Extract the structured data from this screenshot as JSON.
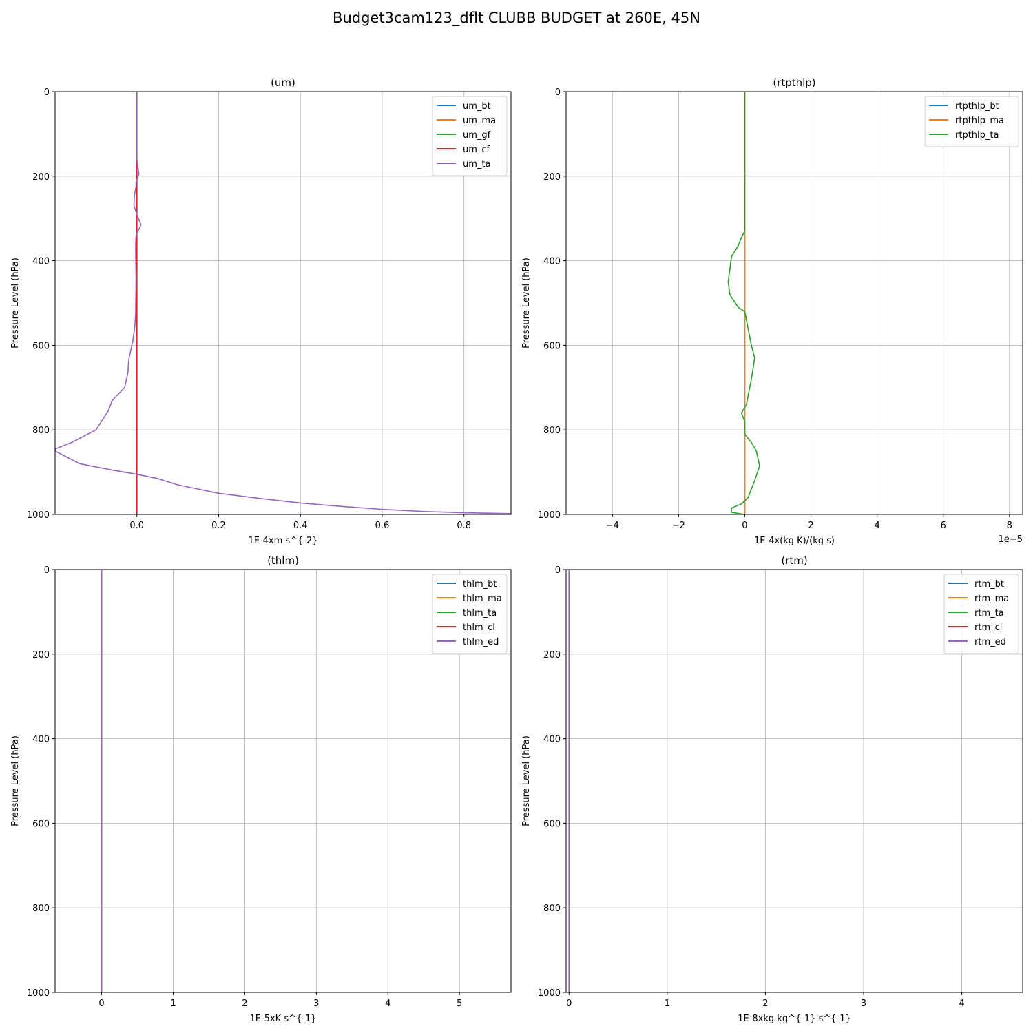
{
  "figure": {
    "title": "Budget3cam123_dflt CLUBB BUDGET at 260E, 45N"
  },
  "chart_data": [
    {
      "type": "line",
      "title": "(um)",
      "xlabel": "1E-4xm s^{-2}",
      "ylabel": "Pressure Level (hPa)",
      "xlim": [
        -0.2,
        0.915
      ],
      "ylim": [
        1000,
        0
      ],
      "xticks": [
        0.0,
        0.2,
        0.4,
        0.6,
        0.8
      ],
      "xticklabels": [
        "0.0",
        "0.2",
        "0.4",
        "0.6",
        "0.8"
      ],
      "yticks": [
        0,
        200,
        400,
        600,
        800,
        1000
      ],
      "yticklabels": [
        "0",
        "200",
        "400",
        "600",
        "800",
        "1000"
      ],
      "xoffset_label": "",
      "grid": true,
      "legend_position": "top-right",
      "series": [
        {
          "name": "um_bt",
          "color": "#1f77b4",
          "x": [
            0,
            0
          ],
          "y": [
            0,
            1000
          ]
        },
        {
          "name": "um_ma",
          "color": "#ff7f0e",
          "x": [
            0,
            0
          ],
          "y": [
            0,
            1000
          ]
        },
        {
          "name": "um_gf",
          "color": "#2ca02c",
          "x": [
            0,
            0
          ],
          "y": [
            0,
            1000
          ]
        },
        {
          "name": "um_cf",
          "color": "#d62728",
          "x": [
            0,
            0
          ],
          "y": [
            0,
            1000
          ]
        },
        {
          "name": "um_ta",
          "color": "#9467bd",
          "x": [
            0,
            0,
            0.002,
            0.005,
            -0.002,
            -0.002,
            -0.006,
            -0.007,
            -0.002,
            0.01,
            -0.002,
            -0.003,
            -0.003,
            -0.002,
            -0.003,
            -0.005,
            -0.01,
            -0.02,
            -0.022,
            -0.03,
            -0.06,
            -0.07,
            -0.08,
            -0.1,
            -0.16,
            -0.2,
            -0.2,
            -0.17,
            -0.14,
            -0.06,
            0,
            0.05,
            0.1,
            0.2,
            0.3,
            0.4,
            0.5,
            0.6,
            0.7,
            0.8,
            0.915,
            0.9,
            0
          ],
          "y": [
            0,
            160,
            175,
            195,
            215,
            225,
            245,
            270,
            285,
            315,
            340,
            360,
            380,
            445,
            520,
            555,
            590,
            635,
            665,
            700,
            730,
            755,
            770,
            800,
            830,
            845,
            850,
            865,
            880,
            895,
            905,
            915,
            930,
            950,
            962,
            973,
            981,
            988,
            993,
            996,
            998,
            1000,
            1000
          ]
        }
      ]
    },
    {
      "type": "line",
      "title": "(rtpthlp)",
      "xlabel": "1E-4x(kg K)/(kg s)",
      "ylabel": "Pressure Level (hPa)",
      "xlim": [
        -5.4,
        8.4
      ],
      "ylim": [
        1000,
        0
      ],
      "xticks": [
        -4,
        -2,
        0,
        2,
        4,
        6,
        8
      ],
      "xticklabels": [
        "−4",
        "−2",
        "0",
        "2",
        "4",
        "6",
        "8"
      ],
      "yticks": [
        0,
        200,
        400,
        600,
        800,
        1000
      ],
      "yticklabels": [
        "0",
        "200",
        "400",
        "600",
        "800",
        "1000"
      ],
      "xoffset_label": "1e−5",
      "grid": true,
      "legend_position": "top-right",
      "series": [
        {
          "name": "rtpthlp_bt",
          "color": "#1f77b4",
          "x": [
            0,
            0
          ],
          "y": [
            0,
            1000
          ]
        },
        {
          "name": "rtpthlp_ma",
          "color": "#ff7f0e",
          "x": [
            0,
            0
          ],
          "y": [
            0,
            1000
          ]
        },
        {
          "name": "rtpthlp_ta",
          "color": "#2ca02c",
          "x": [
            0,
            0,
            -0.1,
            -0.2,
            -0.4,
            -0.5,
            -0.45,
            -0.2,
            0,
            0.1,
            0.2,
            0.3,
            0.2,
            0.1,
            0.05,
            -0.1,
            0,
            0,
            0.2,
            0.35,
            0.45,
            0.3,
            0.1,
            -0.1,
            -0.4,
            -0.4,
            0
          ],
          "y": [
            0,
            330,
            345,
            365,
            390,
            450,
            480,
            510,
            520,
            560,
            600,
            630,
            680,
            720,
            740,
            760,
            780,
            810,
            830,
            850,
            885,
            920,
            960,
            975,
            985,
            995,
            1000
          ]
        }
      ]
    },
    {
      "type": "line",
      "title": "(thlm)",
      "xlabel": "1E-5xK s^{-1}",
      "ylabel": "Pressure Level (hPa)",
      "xlim": [
        -0.65,
        5.72
      ],
      "ylim": [
        1000,
        0
      ],
      "xticks": [
        0,
        1,
        2,
        3,
        4,
        5
      ],
      "xticklabels": [
        "0",
        "1",
        "2",
        "3",
        "4",
        "5"
      ],
      "yticks": [
        0,
        200,
        400,
        600,
        800,
        1000
      ],
      "yticklabels": [
        "0",
        "200",
        "400",
        "600",
        "800",
        "1000"
      ],
      "xoffset_label": "",
      "grid": true,
      "legend_position": "top-right",
      "series": [
        {
          "name": "thlm_bt",
          "color": "#1f77b4",
          "x": [
            0,
            0
          ],
          "y": [
            0,
            1000
          ]
        },
        {
          "name": "thlm_ma",
          "color": "#ff7f0e",
          "x": [
            0,
            0
          ],
          "y": [
            0,
            1000
          ]
        },
        {
          "name": "thlm_ta",
          "color": "#2ca02c",
          "x": [
            0,
            0
          ],
          "y": [
            0,
            1000
          ]
        },
        {
          "name": "thlm_cl",
          "color": "#d62728",
          "x": [
            0,
            0
          ],
          "y": [
            0,
            1000
          ]
        },
        {
          "name": "thlm_ed",
          "color": "#9467bd",
          "x": [
            0,
            0
          ],
          "y": [
            0,
            1000
          ]
        }
      ]
    },
    {
      "type": "line",
      "title": "(rtm)",
      "xlabel": "1E-8xkg kg^{-1} s^{-1}",
      "ylabel": "Pressure Level (hPa)",
      "xlim": [
        -0.03,
        4.62
      ],
      "ylim": [
        1000,
        0
      ],
      "xticks": [
        0,
        1,
        2,
        3,
        4
      ],
      "xticklabels": [
        "0",
        "1",
        "2",
        "3",
        "4"
      ],
      "yticks": [
        0,
        200,
        400,
        600,
        800,
        1000
      ],
      "yticklabels": [
        "0",
        "200",
        "400",
        "600",
        "800",
        "1000"
      ],
      "xoffset_label": "",
      "grid": true,
      "legend_position": "top-right",
      "series": [
        {
          "name": "rtm_bt",
          "color": "#1f77b4",
          "x": [
            0,
            0
          ],
          "y": [
            0,
            1000
          ]
        },
        {
          "name": "rtm_ma",
          "color": "#ff7f0e",
          "x": [
            0,
            0
          ],
          "y": [
            0,
            1000
          ]
        },
        {
          "name": "rtm_ta",
          "color": "#2ca02c",
          "x": [
            0,
            0
          ],
          "y": [
            0,
            1000
          ]
        },
        {
          "name": "rtm_cl",
          "color": "#d62728",
          "x": [
            0,
            0
          ],
          "y": [
            0,
            1000
          ]
        },
        {
          "name": "rtm_ed",
          "color": "#9467bd",
          "x": [
            0,
            0
          ],
          "y": [
            0,
            1000
          ]
        }
      ]
    }
  ]
}
